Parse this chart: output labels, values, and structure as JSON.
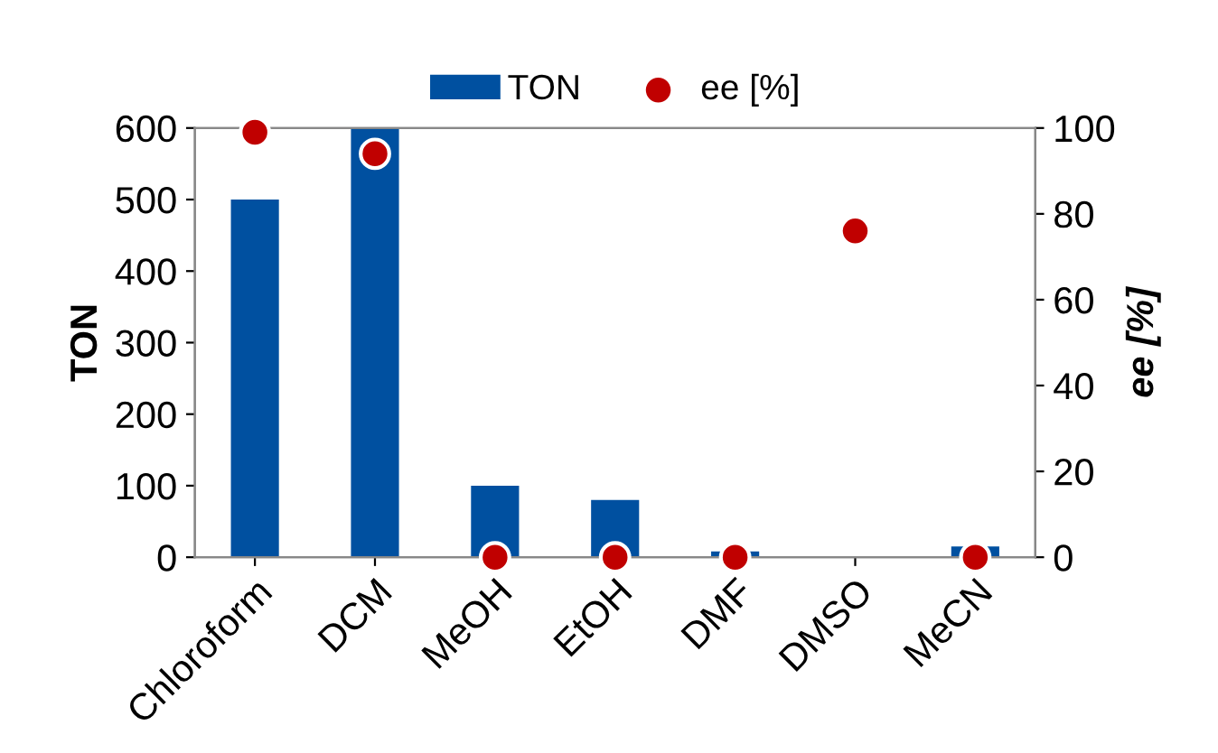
{
  "chart_data": {
    "type": "bar",
    "categories": [
      "Chloroform",
      "DCM",
      "MeOH",
      "EtOH",
      "DMF",
      "DMSO",
      "MeCN"
    ],
    "series": [
      {
        "name": "TON",
        "color": "#0050a0",
        "values": [
          500,
          600,
          100,
          80,
          8,
          0,
          15
        ]
      },
      {
        "name": "ee [%]",
        "type": "scatter",
        "axis": "y2",
        "color": "#c00000",
        "values": [
          99,
          94,
          0,
          0,
          0,
          76,
          0
        ]
      }
    ],
    "ylabel": "TON",
    "y2label": "ee [%]",
    "ylim": [
      0,
      600
    ],
    "yticks": [
      0,
      100,
      200,
      300,
      400,
      500,
      600
    ],
    "y2lim": [
      0,
      100
    ],
    "y2ticks": [
      0,
      20,
      40,
      60,
      80,
      100
    ],
    "legend": "top",
    "grid": false,
    "marker": "circle"
  }
}
